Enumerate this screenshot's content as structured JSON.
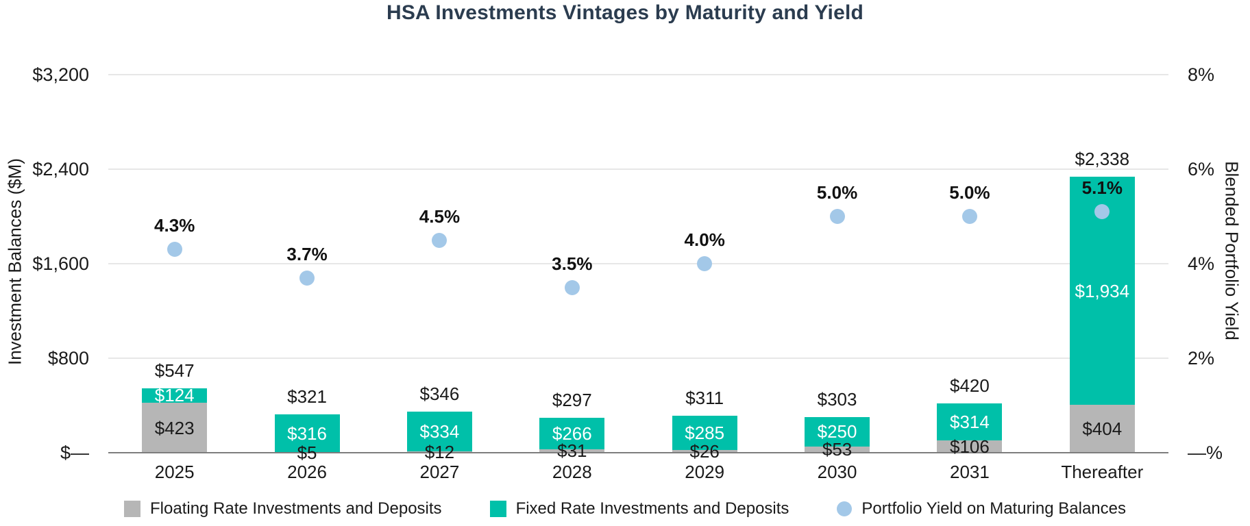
{
  "chart_data": {
    "type": "bar",
    "subtype": "stacked-bar-with-scatter-overlay",
    "title": "HSA Investments Vintages by Maturity and Yield",
    "categories": [
      "2025",
      "2026",
      "2027",
      "2028",
      "2029",
      "2030",
      "2031",
      "Thereafter"
    ],
    "left_axis": {
      "title": "Investment Balances ($M)",
      "min": 0,
      "max": 3200,
      "tick_step": 800,
      "ticks": [
        "$3,200",
        "$2,400",
        "$1,600",
        "$800",
        "$—"
      ]
    },
    "right_axis": {
      "title": "Blended Portfolio Yield",
      "min": 0,
      "max": 8,
      "tick_step": 2,
      "ticks": [
        "8%",
        "6%",
        "4%",
        "2%",
        "—%"
      ]
    },
    "grid": "horizontal-on",
    "legend_position": "bottom",
    "series": [
      {
        "name": "Floating Rate Investments and Deposits",
        "type": "bar",
        "stack": "balances",
        "color": "#b6b6b6",
        "label_color": "#1a1a1a",
        "values": [
          423,
          5,
          12,
          31,
          26,
          53,
          106,
          404
        ],
        "labels": [
          "$423",
          "$5",
          "$12",
          "$31",
          "$26",
          "$53",
          "$106",
          "$404"
        ]
      },
      {
        "name": "Fixed Rate Investments and Deposits",
        "type": "bar",
        "stack": "balances",
        "color": "#00c0a9",
        "label_color": "#ffffff",
        "values": [
          124,
          316,
          334,
          266,
          285,
          250,
          314,
          1934
        ],
        "labels": [
          "$124",
          "$316",
          "$334",
          "$266",
          "$285",
          "$250",
          "$314",
          "$1,934"
        ]
      },
      {
        "name": "Portfolio Yield on Maturing Balances",
        "type": "scatter",
        "axis": "right",
        "color": "#a3c8e8",
        "values": [
          4.3,
          3.7,
          4.5,
          3.5,
          4.0,
          5.0,
          5.0,
          5.1
        ],
        "labels": [
          "4.3%",
          "3.7%",
          "4.5%",
          "3.5%",
          "4.0%",
          "5.0%",
          "5.0%",
          "5.1%"
        ]
      }
    ],
    "totals": {
      "values": [
        547,
        321,
        346,
        297,
        311,
        303,
        420,
        2338
      ],
      "labels": [
        "$547",
        "$321",
        "$346",
        "$297",
        "$311",
        "$303",
        "$420",
        "$2,338"
      ]
    },
    "legend": [
      {
        "label": "Floating Rate Investments and Deposits",
        "swatch": "square",
        "color": "#b6b6b6"
      },
      {
        "label": "Fixed Rate Investments and Deposits",
        "swatch": "square",
        "color": "#00c0a9"
      },
      {
        "label": "Portfolio Yield on Maturing Balances",
        "swatch": "circle",
        "color": "#a3c8e8"
      }
    ],
    "colors": {
      "title": "#2b3c4f",
      "text": "#1a1a1a",
      "gridline": "#e7e7e7",
      "baseline": "#7d7d7d",
      "background": "#ffffff"
    }
  }
}
